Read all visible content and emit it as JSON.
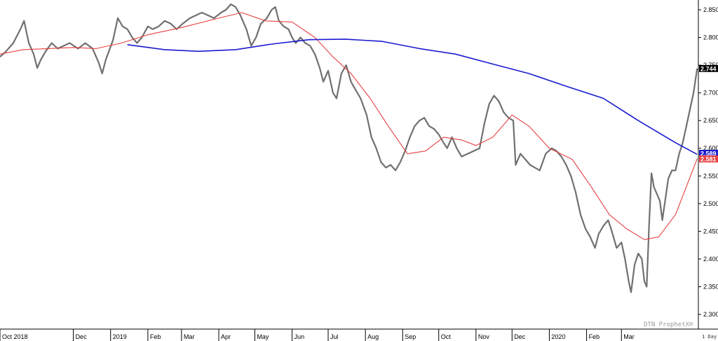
{
  "chart_data": {
    "type": "line",
    "watermark": "DTN ProphetX®",
    "period_label": "1 Day",
    "ylim": [
      2.275,
      2.865
    ],
    "y_ticks": [
      "2.850",
      "2.800",
      "2.750",
      "2.700",
      "2.650",
      "2.600",
      "2.550",
      "2.500",
      "2.450",
      "2.400",
      "2.350",
      "2.300"
    ],
    "x_start": "2018-10-01",
    "x_end": "2020-04-01",
    "x_months": [
      {
        "label": "Oct 2018",
        "date": "2018-10-01"
      },
      {
        "label": "Dec",
        "date": "2018-12-01"
      },
      {
        "label": "2019",
        "date": "2019-01-01"
      },
      {
        "label": "Feb",
        "date": "2019-02-01"
      },
      {
        "label": "Mar",
        "date": "2019-03-01"
      },
      {
        "label": "Apr",
        "date": "2019-04-01"
      },
      {
        "label": "May",
        "date": "2019-05-01"
      },
      {
        "label": "Jun",
        "date": "2019-06-01"
      },
      {
        "label": "Jul",
        "date": "2019-07-01"
      },
      {
        "label": "Aug",
        "date": "2019-08-01"
      },
      {
        "label": "Sep",
        "date": "2019-09-01"
      },
      {
        "label": "Oct",
        "date": "2019-10-01"
      },
      {
        "label": "Nov",
        "date": "2019-11-01"
      },
      {
        "label": "Dec",
        "date": "2019-12-01"
      },
      {
        "label": "2020",
        "date": "2020-01-01"
      },
      {
        "label": "Feb",
        "date": "2020-02-01"
      },
      {
        "label": "Mar",
        "date": "2020-03-01"
      }
    ],
    "series": [
      {
        "color": "#707070",
        "points": [
          [
            "2018-10-01",
            2.765
          ],
          [
            "2018-10-06",
            2.775
          ],
          [
            "2018-10-12",
            2.79
          ],
          [
            "2018-10-18",
            2.815
          ],
          [
            "2018-10-21",
            2.83
          ],
          [
            "2018-10-25",
            2.79
          ],
          [
            "2018-10-29",
            2.77
          ],
          [
            "2018-11-01",
            2.745
          ],
          [
            "2018-11-04",
            2.76
          ],
          [
            "2018-11-08",
            2.775
          ],
          [
            "2018-11-13",
            2.79
          ],
          [
            "2018-11-18",
            2.78
          ],
          [
            "2018-11-23",
            2.785
          ],
          [
            "2018-11-28",
            2.79
          ],
          [
            "2018-12-05",
            2.78
          ],
          [
            "2018-12-11",
            2.79
          ],
          [
            "2018-12-17",
            2.78
          ],
          [
            "2018-12-22",
            2.755
          ],
          [
            "2018-12-25",
            2.735
          ],
          [
            "2018-12-28",
            2.76
          ],
          [
            "2019-01-03",
            2.795
          ],
          [
            "2019-01-07",
            2.835
          ],
          [
            "2019-01-11",
            2.82
          ],
          [
            "2019-01-15",
            2.815
          ],
          [
            "2019-01-19",
            2.8
          ],
          [
            "2019-01-23",
            2.79
          ],
          [
            "2019-01-27",
            2.8
          ],
          [
            "2019-02-01",
            2.82
          ],
          [
            "2019-02-05",
            2.815
          ],
          [
            "2019-02-10",
            2.82
          ],
          [
            "2019-02-15",
            2.83
          ],
          [
            "2019-02-20",
            2.825
          ],
          [
            "2019-02-25",
            2.815
          ],
          [
            "2019-03-02",
            2.825
          ],
          [
            "2019-03-08",
            2.835
          ],
          [
            "2019-03-13",
            2.84
          ],
          [
            "2019-03-18",
            2.845
          ],
          [
            "2019-03-23",
            2.84
          ],
          [
            "2019-03-28",
            2.835
          ],
          [
            "2019-04-03",
            2.845
          ],
          [
            "2019-04-07",
            2.85
          ],
          [
            "2019-04-11",
            2.86
          ],
          [
            "2019-04-15",
            2.855
          ],
          [
            "2019-04-19",
            2.84
          ],
          [
            "2019-04-24",
            2.815
          ],
          [
            "2019-04-28",
            2.785
          ],
          [
            "2019-05-02",
            2.8
          ],
          [
            "2019-05-06",
            2.825
          ],
          [
            "2019-05-11",
            2.835
          ],
          [
            "2019-05-15",
            2.85
          ],
          [
            "2019-05-18",
            2.855
          ],
          [
            "2019-05-21",
            2.83
          ],
          [
            "2019-05-25",
            2.82
          ],
          [
            "2019-05-29",
            2.815
          ],
          [
            "2019-06-01",
            2.8
          ],
          [
            "2019-06-04",
            2.79
          ],
          [
            "2019-06-08",
            2.8
          ],
          [
            "2019-06-12",
            2.79
          ],
          [
            "2019-06-16",
            2.785
          ],
          [
            "2019-06-20",
            2.77
          ],
          [
            "2019-06-24",
            2.745
          ],
          [
            "2019-06-27",
            2.72
          ],
          [
            "2019-07-01",
            2.74
          ],
          [
            "2019-07-05",
            2.7
          ],
          [
            "2019-07-08",
            2.69
          ],
          [
            "2019-07-12",
            2.735
          ],
          [
            "2019-07-16",
            2.75
          ],
          [
            "2019-07-20",
            2.72
          ],
          [
            "2019-07-24",
            2.705
          ],
          [
            "2019-07-28",
            2.69
          ],
          [
            "2019-08-02",
            2.66
          ],
          [
            "2019-08-06",
            2.62
          ],
          [
            "2019-08-10",
            2.6
          ],
          [
            "2019-08-14",
            2.575
          ],
          [
            "2019-08-18",
            2.565
          ],
          [
            "2019-08-22",
            2.57
          ],
          [
            "2019-08-26",
            2.56
          ],
          [
            "2019-08-30",
            2.575
          ],
          [
            "2019-09-03",
            2.595
          ],
          [
            "2019-09-07",
            2.62
          ],
          [
            "2019-09-11",
            2.64
          ],
          [
            "2019-09-15",
            2.65
          ],
          [
            "2019-09-19",
            2.655
          ],
          [
            "2019-09-23",
            2.64
          ],
          [
            "2019-09-27",
            2.635
          ],
          [
            "2019-10-01",
            2.625
          ],
          [
            "2019-10-05",
            2.61
          ],
          [
            "2019-10-08",
            2.6
          ],
          [
            "2019-10-12",
            2.62
          ],
          [
            "2019-10-16",
            2.6
          ],
          [
            "2019-10-20",
            2.585
          ],
          [
            "2019-10-25",
            2.59
          ],
          [
            "2019-10-30",
            2.595
          ],
          [
            "2019-11-04",
            2.6
          ],
          [
            "2019-11-08",
            2.645
          ],
          [
            "2019-11-12",
            2.68
          ],
          [
            "2019-11-16",
            2.695
          ],
          [
            "2019-11-20",
            2.685
          ],
          [
            "2019-11-24",
            2.665
          ],
          [
            "2019-11-28",
            2.655
          ],
          [
            "2019-12-02",
            2.65
          ],
          [
            "2019-12-04",
            2.57
          ],
          [
            "2019-12-08",
            2.59
          ],
          [
            "2019-12-12",
            2.58
          ],
          [
            "2019-12-16",
            2.57
          ],
          [
            "2019-12-20",
            2.565
          ],
          [
            "2019-12-24",
            2.56
          ],
          [
            "2019-12-29",
            2.59
          ],
          [
            "2020-01-03",
            2.6
          ],
          [
            "2020-01-07",
            2.595
          ],
          [
            "2020-01-11",
            2.585
          ],
          [
            "2020-01-15",
            2.57
          ],
          [
            "2020-01-19",
            2.55
          ],
          [
            "2020-01-23",
            2.52
          ],
          [
            "2020-01-27",
            2.48
          ],
          [
            "2020-01-31",
            2.455
          ],
          [
            "2020-02-04",
            2.44
          ],
          [
            "2020-02-08",
            2.42
          ],
          [
            "2020-02-11",
            2.445
          ],
          [
            "2020-02-15",
            2.46
          ],
          [
            "2020-02-19",
            2.47
          ],
          [
            "2020-02-22",
            2.45
          ],
          [
            "2020-02-26",
            2.42
          ],
          [
            "2020-03-01",
            2.43
          ],
          [
            "2020-03-04",
            2.4
          ],
          [
            "2020-03-07",
            2.36
          ],
          [
            "2020-03-09",
            2.34
          ],
          [
            "2020-03-12",
            2.39
          ],
          [
            "2020-03-15",
            2.41
          ],
          [
            "2020-03-18",
            2.4
          ],
          [
            "2020-03-20",
            2.36
          ],
          [
            "2020-03-22",
            2.35
          ],
          [
            "2020-03-24",
            2.46
          ],
          [
            "2020-03-26",
            2.555
          ],
          [
            "2020-03-28",
            2.53
          ],
          [
            "2020-03-30",
            2.52
          ],
          [
            "2020-04-02",
            2.505
          ],
          [
            "2020-04-04",
            2.47
          ],
          [
            "2020-04-06",
            2.5
          ],
          [
            "2020-04-09",
            2.545
          ],
          [
            "2020-04-12",
            2.56
          ],
          [
            "2020-04-15",
            2.56
          ],
          [
            "2020-04-18",
            2.59
          ],
          [
            "2020-04-21",
            2.61
          ],
          [
            "2020-04-24",
            2.64
          ],
          [
            "2020-04-27",
            2.67
          ],
          [
            "2020-04-30",
            2.7
          ],
          [
            "2020-05-03",
            2.744
          ]
        ]
      },
      {
        "color": "#e84040",
        "points": [
          [
            "2018-10-01",
            2.77
          ],
          [
            "2018-10-20",
            2.778
          ],
          [
            "2018-11-10",
            2.78
          ],
          [
            "2018-12-01",
            2.782
          ],
          [
            "2018-12-20",
            2.78
          ],
          [
            "2019-01-10",
            2.79
          ],
          [
            "2019-02-01",
            2.805
          ],
          [
            "2019-03-01",
            2.818
          ],
          [
            "2019-04-01",
            2.835
          ],
          [
            "2019-04-20",
            2.845
          ],
          [
            "2019-05-10",
            2.83
          ],
          [
            "2019-06-01",
            2.828
          ],
          [
            "2019-06-20",
            2.8
          ],
          [
            "2019-07-05",
            2.765
          ],
          [
            "2019-07-20",
            2.735
          ],
          [
            "2019-08-05",
            2.69
          ],
          [
            "2019-08-20",
            2.64
          ],
          [
            "2019-09-05",
            2.59
          ],
          [
            "2019-09-20",
            2.595
          ],
          [
            "2019-10-05",
            2.62
          ],
          [
            "2019-10-20",
            2.615
          ],
          [
            "2019-11-01",
            2.605
          ],
          [
            "2019-11-15",
            2.62
          ],
          [
            "2019-12-01",
            2.66
          ],
          [
            "2019-12-15",
            2.64
          ],
          [
            "2020-01-01",
            2.6
          ],
          [
            "2020-01-20",
            2.58
          ],
          [
            "2020-02-05",
            2.53
          ],
          [
            "2020-02-20",
            2.48
          ],
          [
            "2020-03-05",
            2.455
          ],
          [
            "2020-03-20",
            2.435
          ],
          [
            "2020-04-01",
            2.44
          ],
          [
            "2020-04-15",
            2.48
          ],
          [
            "2020-05-03",
            2.581
          ]
        ]
      },
      {
        "color": "#1a1ad0",
        "points": [
          [
            "2019-01-15",
            2.787
          ],
          [
            "2019-02-15",
            2.778
          ],
          [
            "2019-03-15",
            2.775
          ],
          [
            "2019-04-15",
            2.778
          ],
          [
            "2019-05-15",
            2.788
          ],
          [
            "2019-06-15",
            2.796
          ],
          [
            "2019-07-15",
            2.797
          ],
          [
            "2019-08-15",
            2.793
          ],
          [
            "2019-09-15",
            2.78
          ],
          [
            "2019-10-15",
            2.77
          ],
          [
            "2019-11-15",
            2.752
          ],
          [
            "2019-12-15",
            2.735
          ],
          [
            "2020-01-15",
            2.712
          ],
          [
            "2020-02-15",
            2.69
          ],
          [
            "2020-03-15",
            2.65
          ],
          [
            "2020-04-15",
            2.61
          ],
          [
            "2020-05-03",
            2.589
          ]
        ]
      }
    ],
    "price_flags": [
      {
        "value": 2.744,
        "text": "2.744",
        "bg": "#000000"
      },
      {
        "value": 2.589,
        "text": "2.589",
        "bg": "#1a1ad0"
      },
      {
        "value": 2.581,
        "text": "2.581",
        "bg": "#e84040"
      }
    ]
  }
}
